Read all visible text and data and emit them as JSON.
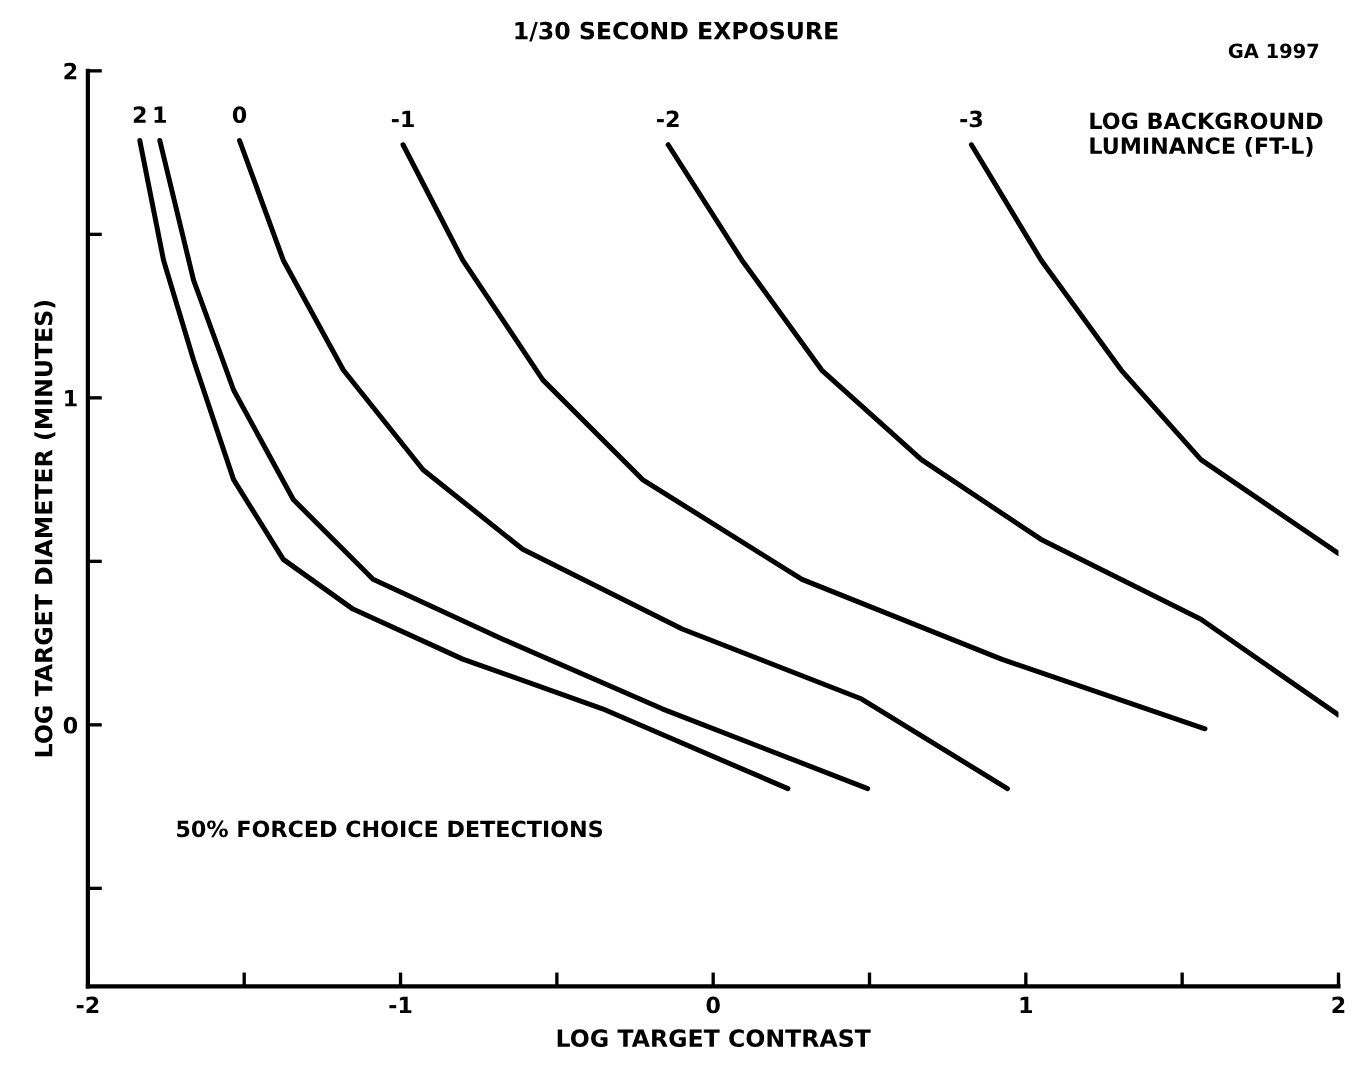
{
  "chart_data": {
    "type": "line",
    "title": "1/30 SECOND EXPOSURE",
    "xlabel": "LOG TARGET CONTRAST",
    "ylabel": "LOG TARGET DIAMETER (MINUTES)",
    "legend_title": "LOG BACKGROUND\nLUMINANCE (FT-L)",
    "annotations": [
      "50% FORCED CHOICE DETECTIONS",
      "GA 1997"
    ],
    "xlim": [
      -2,
      2
    ],
    "ylim": [
      -0.8,
      2
    ],
    "xticks": [
      -2,
      {
        "value": -1.5,
        "label": null
      },
      -1,
      {
        "value": -0.5,
        "label": null
      },
      0,
      {
        "value": 0.5,
        "label": null
      },
      1,
      {
        "value": 1.5,
        "label": null
      },
      2
    ],
    "yticks": [
      {
        "value": -0.5,
        "label": null
      },
      0,
      {
        "value": 0.5,
        "label": null
      },
      1,
      {
        "value": 1.5,
        "label": null
      },
      2
    ],
    "grid": false,
    "marker": "none",
    "line_style": "solid",
    "series": [
      {
        "name": "2",
        "color": "#000000",
        "x": [
          -1.834,
          -1.758,
          -1.662,
          -1.534,
          -1.375,
          -1.152,
          -0.801,
          -0.354,
          0.239
        ],
        "values": [
          1.787,
          1.421,
          1.116,
          0.75,
          0.506,
          0.354,
          0.201,
          0.049,
          -0.195
        ]
      },
      {
        "name": "1",
        "color": "#000000",
        "x": [
          -1.77,
          -1.662,
          -1.534,
          -1.343,
          -1.088,
          -0.673,
          -0.163,
          0.494
        ],
        "values": [
          1.787,
          1.36,
          1.024,
          0.689,
          0.445,
          0.262,
          0.049,
          -0.195
        ]
      },
      {
        "name": "0",
        "color": "#000000",
        "x": [
          -1.515,
          -1.375,
          -1.183,
          -0.928,
          -0.609,
          -0.099,
          0.475,
          0.941
        ],
        "values": [
          1.787,
          1.421,
          1.085,
          0.78,
          0.537,
          0.293,
          0.079,
          -0.195
        ]
      },
      {
        "name": "-1",
        "color": "#000000",
        "x": [
          -0.992,
          -0.801,
          -0.545,
          -0.226,
          0.284,
          0.922,
          1.573
        ],
        "values": [
          1.774,
          1.421,
          1.055,
          0.75,
          0.445,
          0.201,
          -0.012
        ]
      },
      {
        "name": "-2",
        "color": "#000000",
        "x": [
          -0.144,
          0.092,
          0.347,
          0.666,
          1.049,
          1.56,
          2.0
        ],
        "values": [
          1.774,
          1.421,
          1.085,
          0.811,
          0.567,
          0.323,
          0.03
        ]
      },
      {
        "name": "-3",
        "color": "#000000",
        "x": [
          0.826,
          1.049,
          1.305,
          1.56,
          2.0
        ],
        "values": [
          1.774,
          1.421,
          1.085,
          0.811,
          0.524
        ]
      }
    ]
  }
}
